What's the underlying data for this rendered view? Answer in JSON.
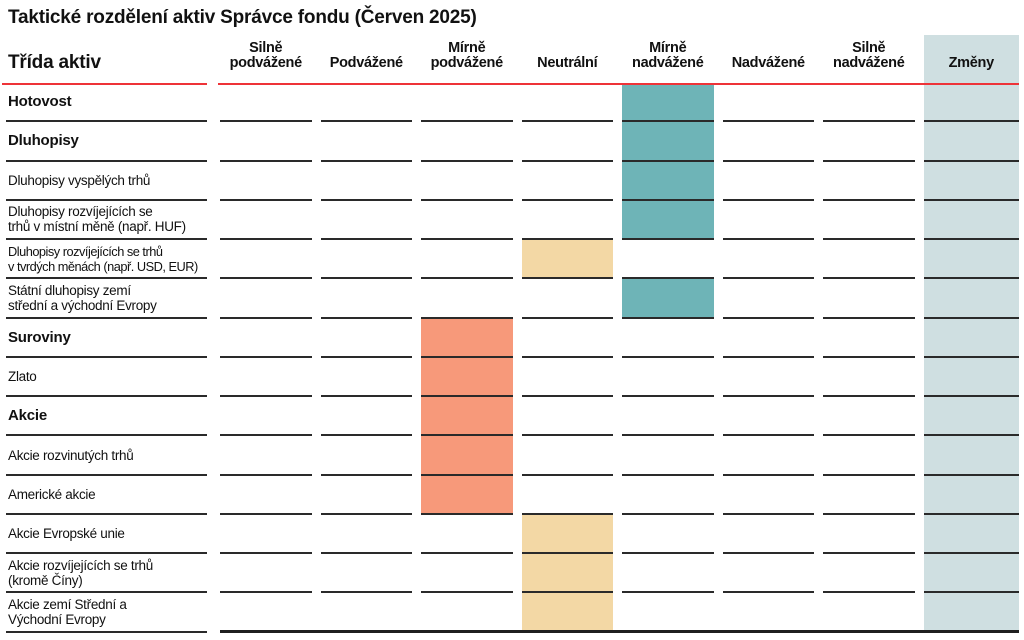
{
  "title": "Taktické rozdělení aktiv Správce fondu (Červen 2025)",
  "table": {
    "row_header": "Třída aktiv",
    "columns": [
      {
        "id": "silne_podvazene",
        "label": "Silně podvážené"
      },
      {
        "id": "podvazene",
        "label": "Podvážené"
      },
      {
        "id": "mirne_podvazene",
        "label": "Mírně podvážené"
      },
      {
        "id": "neutralni",
        "label": "Neutrální"
      },
      {
        "id": "mirne_nadvazene",
        "label": "Mírně nadvážené"
      },
      {
        "id": "nadvazene",
        "label": "Nadvážené"
      },
      {
        "id": "silne_nadvazene",
        "label": "Silně nadvážené"
      },
      {
        "id": "zmeny",
        "label": "Změny"
      }
    ],
    "rows": [
      {
        "line1": "Hotovost",
        "bold": true,
        "highlight": {
          "col": "mirne_nadvazene",
          "color": "teal"
        }
      },
      {
        "line1": "Dluhopisy",
        "bold": true,
        "highlight": {
          "col": "mirne_nadvazene",
          "color": "teal"
        }
      },
      {
        "line1": "Dluhopisy vyspělých trhů",
        "bold": false,
        "highlight": {
          "col": "mirne_nadvazene",
          "color": "teal"
        }
      },
      {
        "line1": "Dluhopisy rozvíjejících se",
        "line2": "trhů v místní měně (např. HUF)",
        "bold": false,
        "highlight": {
          "col": "mirne_nadvazene",
          "color": "teal"
        }
      },
      {
        "line1": "Dluhopisy rozvíjejících se trhů",
        "line2": "v tvrdých měnách (např. USD, EUR)",
        "bold": false,
        "highlight": {
          "col": "neutralni",
          "color": "beige"
        }
      },
      {
        "line1": "Státní dluhopisy zemí",
        "line2": "střední a východní Evropy",
        "bold": false,
        "highlight": {
          "col": "mirne_nadvazene",
          "color": "teal"
        }
      },
      {
        "line1": "Suroviny",
        "bold": true,
        "highlight": {
          "col": "mirne_podvazene",
          "color": "salmon"
        }
      },
      {
        "line1": "Zlato",
        "bold": false,
        "highlight": {
          "col": "mirne_podvazene",
          "color": "salmon"
        }
      },
      {
        "line1": "Akcie",
        "bold": true,
        "highlight": {
          "col": "mirne_podvazene",
          "color": "salmon"
        }
      },
      {
        "line1": "Akcie rozvinutých trhů",
        "bold": false,
        "highlight": {
          "col": "mirne_podvazene",
          "color": "salmon"
        }
      },
      {
        "line1": "Americké akcie",
        "bold": false,
        "highlight": {
          "col": "mirne_podvazene",
          "color": "salmon"
        }
      },
      {
        "line1": "Akcie Evropské unie",
        "bold": false,
        "highlight": {
          "col": "neutralni",
          "color": "beige"
        }
      },
      {
        "line1": "Akcie rozvíjejících se trhů",
        "line2": "(kromě Číny)",
        "bold": false,
        "highlight": {
          "col": "neutralni",
          "color": "beige"
        }
      },
      {
        "line1": "Akcie zemí Střední a",
        "line2": "Východní Evropy",
        "bold": false,
        "highlight": {
          "col": "neutralni",
          "color": "beige"
        }
      }
    ]
  },
  "colors": {
    "teal": "#6eb4b7",
    "salmon": "#f7997a",
    "beige": "#f3d8a5",
    "changes_bg": "#cfdfe1",
    "rule_red": "#ee3338",
    "line": "#2a2a2a"
  },
  "chart_data": {
    "type": "table",
    "title": "Taktické rozdělení aktiv Správce fondu (Červen 2025)",
    "scale": [
      "Silně podvážené",
      "Podvážené",
      "Mírně podvážené",
      "Neutrální",
      "Mírně nadvážené",
      "Nadvážené",
      "Silně nadvážené"
    ],
    "extra_column": "Změny",
    "rows": [
      {
        "asset": "Hotovost",
        "stance": "Mírně nadvážené"
      },
      {
        "asset": "Dluhopisy",
        "stance": "Mírně nadvážené"
      },
      {
        "asset": "Dluhopisy vyspělých trhů",
        "stance": "Mírně nadvážené"
      },
      {
        "asset": "Dluhopisy rozvíjejících se trhů v místní měně (např. HUF)",
        "stance": "Mírně nadvážené"
      },
      {
        "asset": "Dluhopisy rozvíjejících se trhů v tvrdých měnách (např. USD, EUR)",
        "stance": "Neutrální"
      },
      {
        "asset": "Státní dluhopisy zemí střední a východní Evropy",
        "stance": "Mírně nadvážené"
      },
      {
        "asset": "Suroviny",
        "stance": "Mírně podvážené"
      },
      {
        "asset": "Zlato",
        "stance": "Mírně podvážené"
      },
      {
        "asset": "Akcie",
        "stance": "Mírně podvážené"
      },
      {
        "asset": "Akcie rozvinutých trhů",
        "stance": "Mírně podvážené"
      },
      {
        "asset": "Americké akcie",
        "stance": "Mírně podvážené"
      },
      {
        "asset": "Akcie Evropské unie",
        "stance": "Neutrální"
      },
      {
        "asset": "Akcie rozvíjejících se trhů (kromě Číny)",
        "stance": "Neutrální"
      },
      {
        "asset": "Akcie zemí Střední a Východní Evropy",
        "stance": "Neutrální"
      }
    ]
  }
}
